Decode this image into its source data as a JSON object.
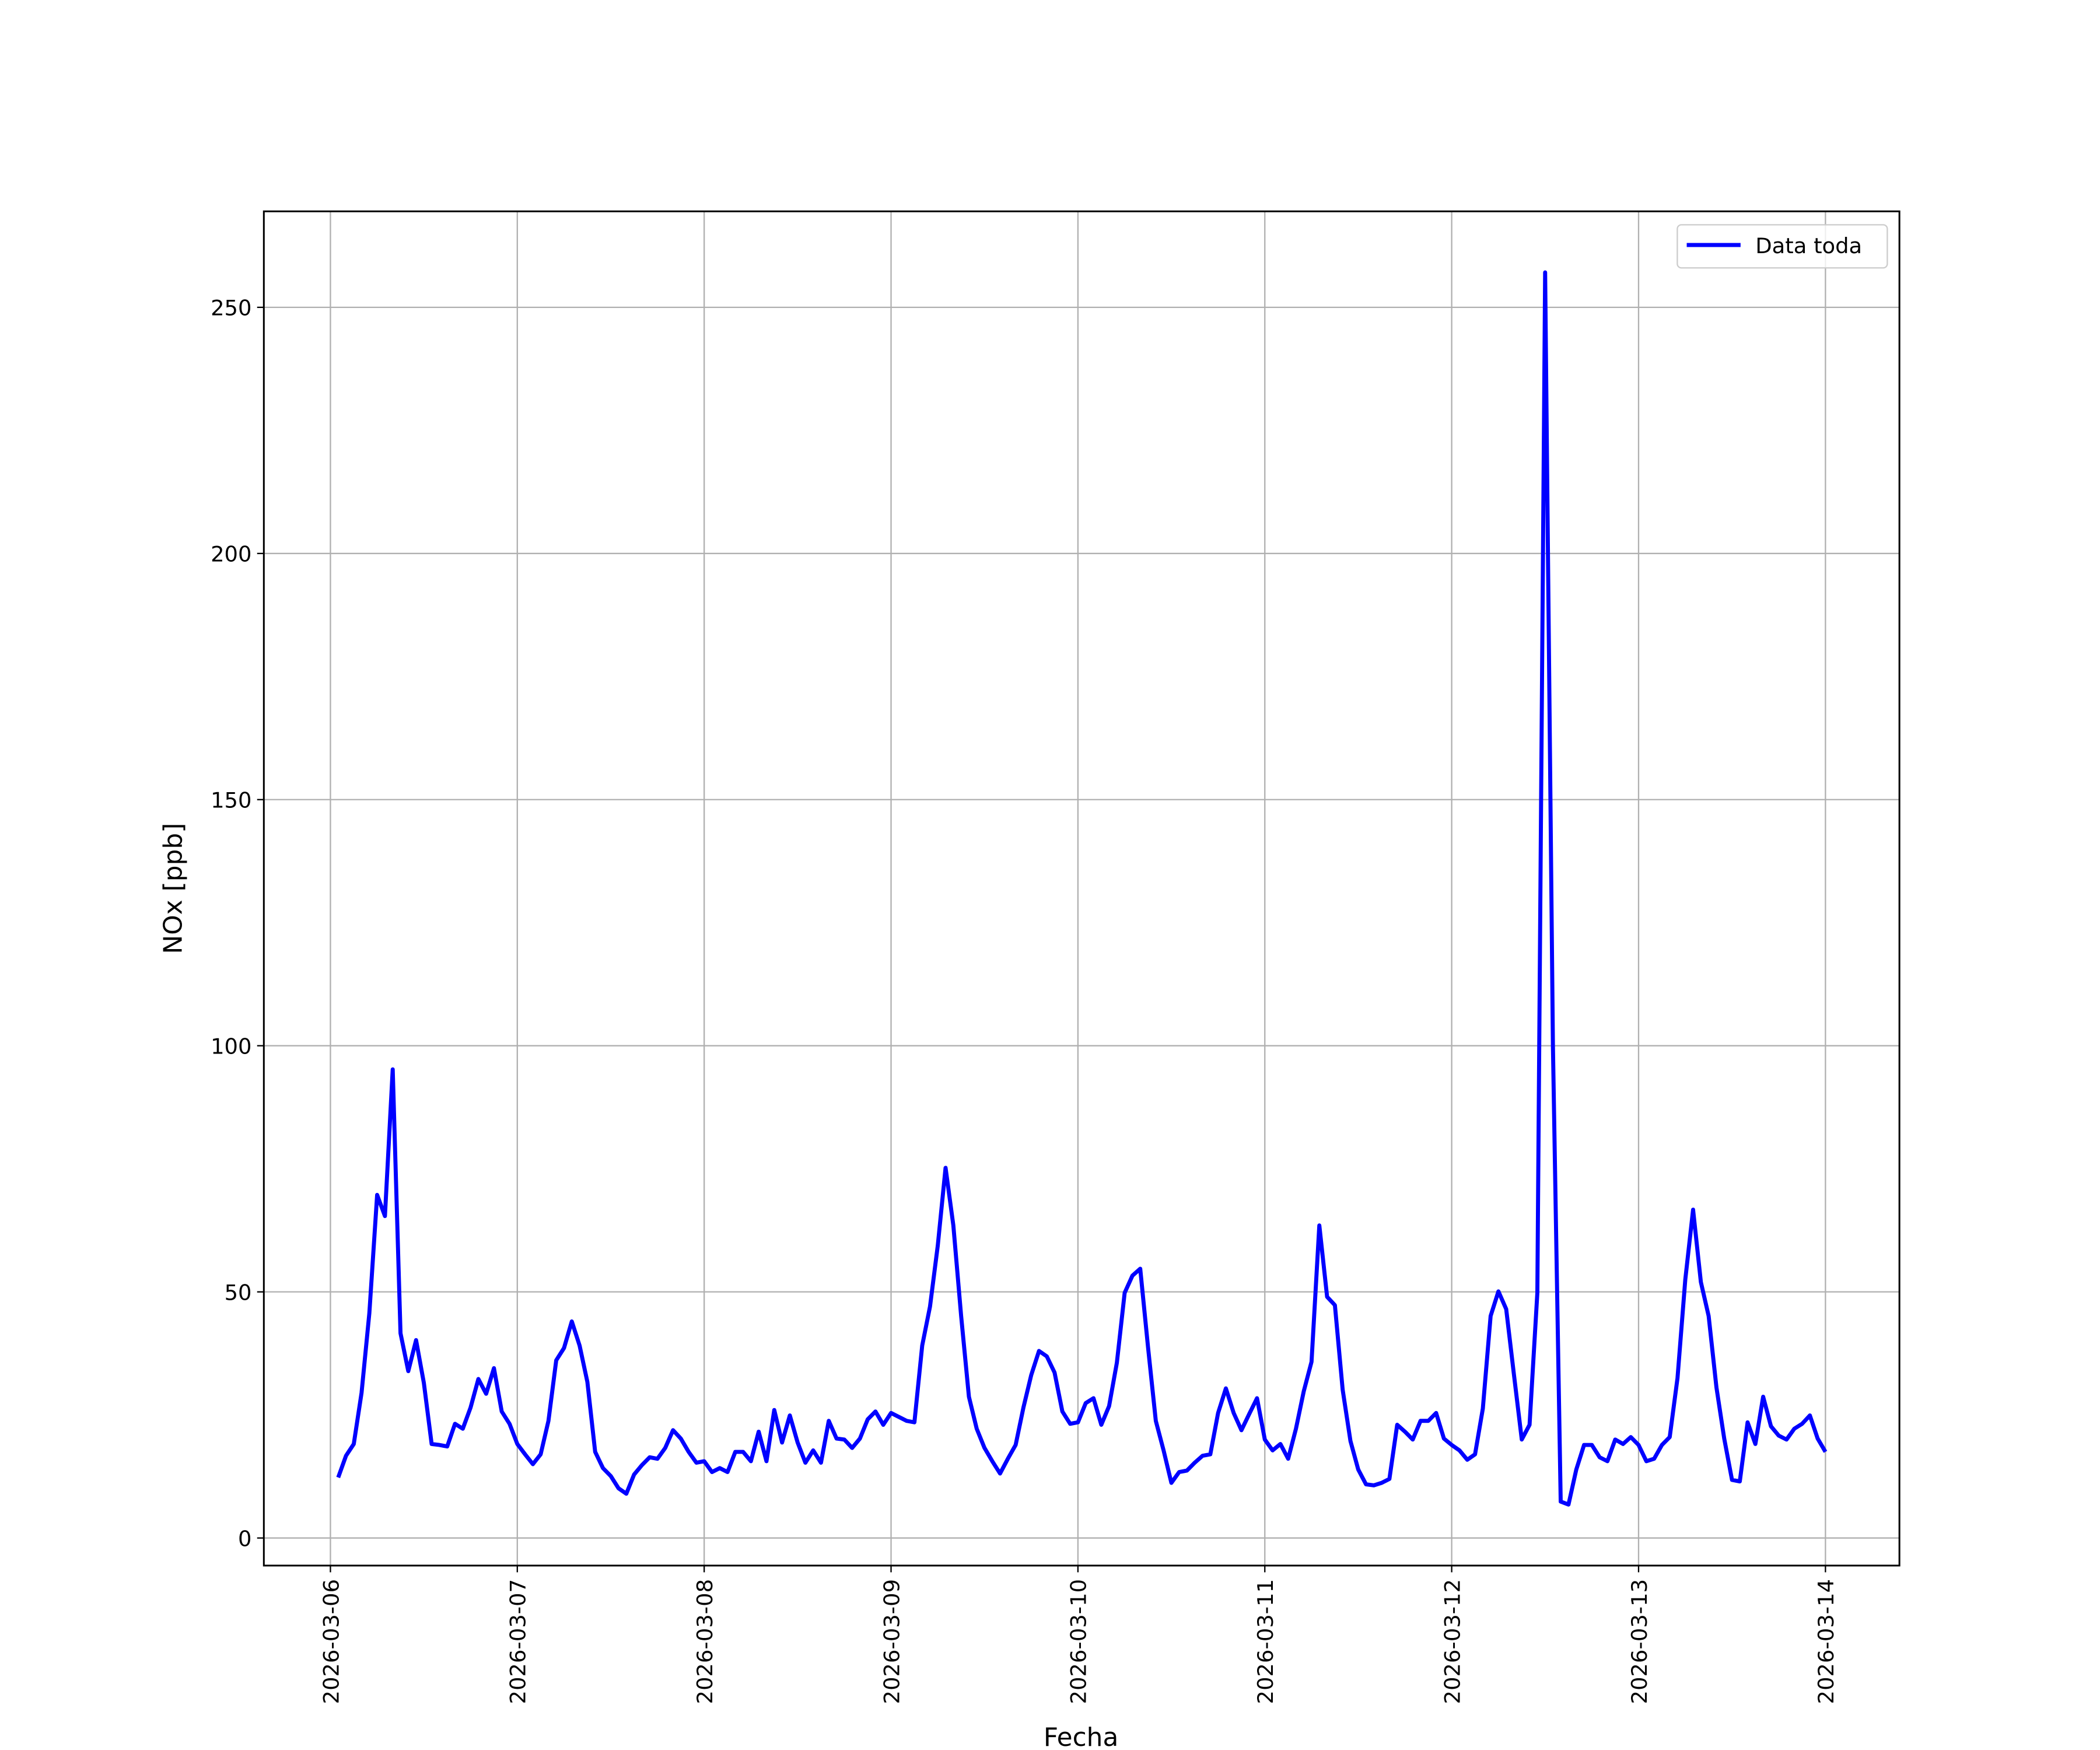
{
  "chart_data": {
    "type": "line",
    "xlabel": "Fecha",
    "ylabel": "NOx [ppb]",
    "x": [
      "2026-03-06T01:00",
      "2026-03-06T02:00",
      "2026-03-06T03:00",
      "2026-03-06T04:00",
      "2026-03-06T05:00",
      "2026-03-06T06:00",
      "2026-03-06T07:00",
      "2026-03-06T08:00",
      "2026-03-06T09:00",
      "2026-03-06T10:00",
      "2026-03-06T11:00",
      "2026-03-06T12:00",
      "2026-03-06T13:00",
      "2026-03-06T14:00",
      "2026-03-06T15:00",
      "2026-03-06T16:00",
      "2026-03-06T17:00",
      "2026-03-06T18:00",
      "2026-03-06T19:00",
      "2026-03-06T20:00",
      "2026-03-06T21:00",
      "2026-03-06T22:00",
      "2026-03-06T23:00",
      "2026-03-07T00:00",
      "2026-03-07T01:00",
      "2026-03-07T02:00",
      "2026-03-07T03:00",
      "2026-03-07T04:00",
      "2026-03-07T05:00",
      "2026-03-07T06:00",
      "2026-03-07T07:00",
      "2026-03-07T08:00",
      "2026-03-07T09:00",
      "2026-03-07T10:00",
      "2026-03-07T11:00",
      "2026-03-07T12:00",
      "2026-03-07T13:00",
      "2026-03-07T14:00",
      "2026-03-07T15:00",
      "2026-03-07T16:00",
      "2026-03-07T17:00",
      "2026-03-07T18:00",
      "2026-03-07T19:00",
      "2026-03-07T20:00",
      "2026-03-07T21:00",
      "2026-03-07T22:00",
      "2026-03-07T23:00",
      "2026-03-08T00:00",
      "2026-03-08T01:00",
      "2026-03-08T02:00",
      "2026-03-08T03:00",
      "2026-03-08T04:00",
      "2026-03-08T05:00",
      "2026-03-08T06:00",
      "2026-03-08T07:00",
      "2026-03-08T08:00",
      "2026-03-08T09:00",
      "2026-03-08T10:00",
      "2026-03-08T11:00",
      "2026-03-08T12:00",
      "2026-03-08T13:00",
      "2026-03-08T14:00",
      "2026-03-08T15:00",
      "2026-03-08T16:00",
      "2026-03-08T17:00",
      "2026-03-08T18:00",
      "2026-03-08T19:00",
      "2026-03-08T20:00",
      "2026-03-08T21:00",
      "2026-03-08T22:00",
      "2026-03-08T23:00",
      "2026-03-09T00:00",
      "2026-03-09T01:00",
      "2026-03-09T02:00",
      "2026-03-09T03:00",
      "2026-03-09T04:00",
      "2026-03-09T05:00",
      "2026-03-09T06:00",
      "2026-03-09T07:00",
      "2026-03-09T08:00",
      "2026-03-09T09:00",
      "2026-03-09T10:00",
      "2026-03-09T11:00",
      "2026-03-09T12:00",
      "2026-03-09T13:00",
      "2026-03-09T14:00",
      "2026-03-09T15:00",
      "2026-03-09T16:00",
      "2026-03-09T17:00",
      "2026-03-09T18:00",
      "2026-03-09T19:00",
      "2026-03-09T20:00",
      "2026-03-09T21:00",
      "2026-03-09T22:00",
      "2026-03-09T23:00",
      "2026-03-10T00:00",
      "2026-03-10T01:00",
      "2026-03-10T02:00",
      "2026-03-10T03:00",
      "2026-03-10T04:00",
      "2026-03-10T05:00",
      "2026-03-10T06:00",
      "2026-03-10T07:00",
      "2026-03-10T08:00",
      "2026-03-10T09:00",
      "2026-03-10T10:00",
      "2026-03-10T11:00",
      "2026-03-10T12:00",
      "2026-03-10T13:00",
      "2026-03-10T14:00",
      "2026-03-10T15:00",
      "2026-03-10T16:00",
      "2026-03-10T17:00",
      "2026-03-10T18:00",
      "2026-03-10T19:00",
      "2026-03-10T20:00",
      "2026-03-10T21:00",
      "2026-03-10T22:00",
      "2026-03-10T23:00",
      "2026-03-11T00:00",
      "2026-03-11T01:00",
      "2026-03-11T02:00",
      "2026-03-11T03:00",
      "2026-03-11T04:00",
      "2026-03-11T05:00",
      "2026-03-11T06:00",
      "2026-03-11T07:00",
      "2026-03-11T08:00",
      "2026-03-11T09:00",
      "2026-03-11T10:00",
      "2026-03-11T11:00",
      "2026-03-11T12:00",
      "2026-03-11T13:00",
      "2026-03-11T14:00",
      "2026-03-11T15:00",
      "2026-03-11T16:00",
      "2026-03-11T17:00",
      "2026-03-11T18:00",
      "2026-03-11T19:00",
      "2026-03-11T20:00",
      "2026-03-11T21:00",
      "2026-03-11T22:00",
      "2026-03-11T23:00",
      "2026-03-12T00:00",
      "2026-03-12T01:00",
      "2026-03-12T02:00",
      "2026-03-12T03:00",
      "2026-03-12T04:00",
      "2026-03-12T05:00",
      "2026-03-12T06:00",
      "2026-03-12T07:00",
      "2026-03-12T08:00",
      "2026-03-12T09:00",
      "2026-03-12T10:00",
      "2026-03-12T11:00",
      "2026-03-12T12:00",
      "2026-03-12T13:00",
      "2026-03-12T14:00",
      "2026-03-12T15:00",
      "2026-03-12T16:00",
      "2026-03-12T17:00",
      "2026-03-12T18:00",
      "2026-03-12T19:00",
      "2026-03-12T20:00",
      "2026-03-12T21:00",
      "2026-03-12T22:00",
      "2026-03-12T23:00",
      "2026-03-13T00:00",
      "2026-03-13T01:00",
      "2026-03-13T02:00",
      "2026-03-13T03:00",
      "2026-03-13T04:00",
      "2026-03-13T05:00",
      "2026-03-13T06:00",
      "2026-03-13T07:00",
      "2026-03-13T08:00",
      "2026-03-13T09:00",
      "2026-03-13T10:00",
      "2026-03-13T11:00",
      "2026-03-13T12:00",
      "2026-03-13T13:00",
      "2026-03-13T14:00",
      "2026-03-13T15:00",
      "2026-03-13T16:00",
      "2026-03-13T17:00",
      "2026-03-13T18:00",
      "2026-03-13T19:00",
      "2026-03-13T20:00",
      "2026-03-13T21:00",
      "2026-03-13T22:00",
      "2026-03-13T23:00",
      "2026-03-14T00:00"
    ],
    "series": [
      {
        "name": "Data toda",
        "color": "#0000ff",
        "values": [
          12.3,
          16.7,
          19.1,
          29.5,
          45.7,
          69.7,
          65.4,
          95.2,
          41.6,
          33.9,
          40.2,
          31.5,
          19.1,
          18.9,
          18.6,
          23.2,
          22.2,
          26.5,
          32.3,
          29.3,
          34.5,
          25.7,
          23.2,
          19.1,
          17.0,
          15.0,
          17.0,
          23.8,
          36.1,
          38.6,
          44.0,
          39.1,
          31.7,
          17.5,
          14.2,
          12.6,
          10.1,
          9.0,
          12.9,
          14.8,
          16.4,
          16.1,
          18.3,
          21.9,
          20.2,
          17.5,
          15.3,
          15.6,
          13.4,
          14.2,
          13.4,
          17.5,
          17.5,
          15.6,
          21.6,
          15.6,
          26.0,
          19.4,
          24.9,
          19.4,
          15.3,
          17.8,
          15.3,
          23.8,
          20.2,
          20.0,
          18.3,
          20.2,
          24.1,
          25.7,
          23.0,
          25.4,
          24.6,
          23.8,
          23.5,
          39.1,
          47.0,
          59.4,
          75.2,
          63.5,
          45.1,
          28.7,
          22.2,
          18.3,
          15.6,
          13.1,
          16.1,
          18.9,
          26.5,
          33.1,
          38.0,
          36.9,
          33.6,
          25.7,
          23.2,
          23.5,
          27.4,
          28.4,
          23.0,
          26.8,
          35.6,
          49.8,
          53.3,
          54.7,
          38.8,
          23.8,
          17.8,
          11.2,
          13.4,
          13.7,
          15.3,
          16.7,
          17.0,
          25.4,
          30.4,
          25.4,
          21.9,
          25.2,
          28.4,
          20.0,
          17.8,
          19.1,
          16.1,
          22.2,
          29.8,
          35.8,
          63.5,
          49.0,
          47.3,
          30.1,
          19.7,
          13.9,
          10.9,
          10.7,
          11.2,
          12.0,
          23.0,
          21.6,
          20.0,
          23.8,
          23.8,
          25.4,
          20.2,
          18.9,
          17.8,
          15.9,
          17.0,
          26.3,
          45.1,
          50.1,
          46.5,
          33.1,
          20.0,
          23.0,
          49.8,
          257.1,
          100.0,
          7.4,
          6.8,
          13.9,
          18.9,
          18.9,
          16.4,
          15.6,
          20.0,
          19.1,
          20.5,
          18.9,
          15.6,
          16.1,
          18.9,
          20.5,
          32.5,
          52.5,
          66.7,
          52.0,
          45.1,
          30.6,
          20.2,
          11.8,
          11.5,
          23.5,
          19.1,
          28.7,
          22.7,
          20.8,
          20.0,
          22.2,
          23.2,
          24.9,
          20.2,
          17.5
        ]
      }
    ],
    "xlim": [
      "2026-03-05T15:27",
      "2026-03-14T09:30"
    ],
    "xticks": [
      "2026-03-06",
      "2026-03-07",
      "2026-03-08",
      "2026-03-09",
      "2026-03-10",
      "2026-03-11",
      "2026-03-12",
      "2026-03-13",
      "2026-03-14"
    ],
    "ylim": [
      -5.6,
      269.5
    ],
    "yticks": [
      0,
      50,
      100,
      150,
      200,
      250
    ],
    "grid": true,
    "legend": "upper right"
  }
}
